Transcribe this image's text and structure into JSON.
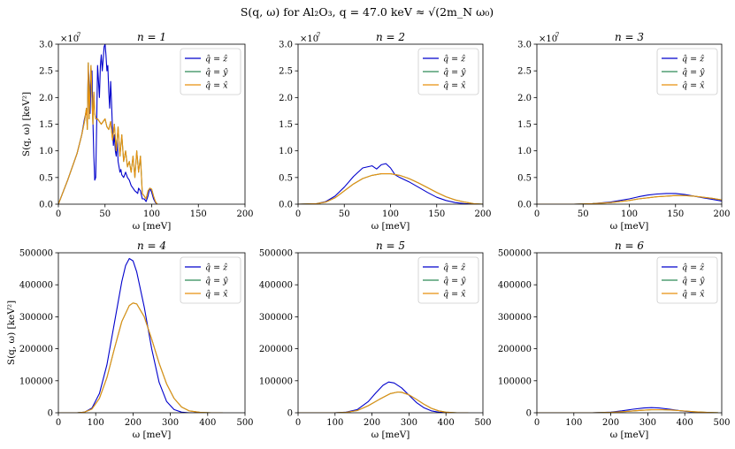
{
  "figure_title": "S(q, ω) for Al₂O₃, q = 47.0 keV ≈ √(2m_N ω₀)",
  "chart_data": [
    {
      "type": "line",
      "title": "n = 1",
      "xlabel": "ω [meV]",
      "ylabel": "S(q, ω) [keV²]",
      "xlim": [
        0,
        200
      ],
      "ylim": [
        0,
        3.0
      ],
      "y_scale_factor": "×10^7",
      "xticks": [
        0,
        50,
        100,
        150,
        200
      ],
      "yticks": [
        "0.0",
        "0.5",
        "1.0",
        "1.5",
        "2.0",
        "2.5",
        "3.0"
      ],
      "legend": "top-right",
      "series": [
        {
          "name": "q̂ = ẑ",
          "color": "#0000cc",
          "x": [
            0,
            10,
            20,
            25,
            28,
            30,
            31,
            32,
            33,
            34,
            35,
            36,
            37,
            38,
            39,
            40,
            41,
            42,
            43,
            44,
            45,
            46,
            47,
            48,
            49,
            50,
            51,
            52,
            53,
            54,
            55,
            56,
            57,
            58,
            59,
            60,
            61,
            62,
            63,
            64,
            65,
            66,
            67,
            68,
            70,
            72,
            74,
            76,
            78,
            80,
            82,
            84,
            85,
            86,
            88,
            90,
            92,
            94,
            96,
            98,
            100,
            102,
            104,
            106
          ],
          "y": [
            0,
            0.45,
            0.95,
            1.3,
            1.6,
            1.75,
            1.5,
            2.6,
            2.2,
            1.7,
            2.4,
            2.5,
            1.6,
            0.9,
            0.45,
            0.5,
            1.5,
            2.6,
            2.3,
            2.0,
            2.6,
            2.8,
            2.5,
            2.7,
            2.95,
            3.0,
            2.8,
            2.5,
            2.6,
            2.1,
            1.8,
            2.3,
            1.9,
            1.4,
            1.1,
            1.3,
            1.0,
            0.9,
            1.2,
            0.8,
            0.7,
            0.6,
            0.65,
            0.55,
            0.5,
            0.6,
            0.5,
            0.45,
            0.35,
            0.3,
            0.25,
            0.22,
            0.2,
            0.3,
            0.25,
            0.1,
            0.1,
            0.05,
            0.15,
            0.3,
            0.22,
            0.1,
            0.03,
            0
          ]
        },
        {
          "name": "q̂ = ŷ",
          "color": "#2e8b57",
          "x": [
            0,
            10,
            20,
            25,
            28,
            30,
            31,
            32,
            33,
            34,
            35,
            36,
            37,
            38,
            39,
            40,
            42,
            44,
            46,
            48,
            50,
            52,
            54,
            56,
            58,
            60,
            62,
            64,
            66,
            68,
            70,
            72,
            74,
            76,
            78,
            80,
            82,
            84,
            86,
            88,
            90,
            92,
            94,
            96,
            98,
            100,
            102,
            104,
            106
          ],
          "y": [
            0,
            0.45,
            0.95,
            1.3,
            1.55,
            1.8,
            1.4,
            2.65,
            1.6,
            2.2,
            2.6,
            2.0,
            1.5,
            2.1,
            1.7,
            1.6,
            1.6,
            1.55,
            1.5,
            1.55,
            1.6,
            1.45,
            1.4,
            1.55,
            1.2,
            1.5,
            1.0,
            1.45,
            0.9,
            1.3,
            0.8,
            1.0,
            0.7,
            0.8,
            0.6,
            0.9,
            0.5,
            1.0,
            0.6,
            0.9,
            0.2,
            0.15,
            0.1,
            0.25,
            0.3,
            0.28,
            0.15,
            0.05,
            0
          ]
        },
        {
          "name": "q̂ = x̂",
          "color": "#e8900f",
          "x": [
            0,
            10,
            20,
            25,
            28,
            30,
            31,
            32,
            33,
            34,
            35,
            36,
            37,
            38,
            39,
            40,
            42,
            44,
            46,
            48,
            50,
            52,
            54,
            56,
            58,
            60,
            62,
            64,
            66,
            68,
            70,
            72,
            74,
            76,
            78,
            80,
            82,
            84,
            86,
            88,
            90,
            92,
            94,
            96,
            98,
            100,
            102,
            104,
            106
          ],
          "y": [
            0,
            0.45,
            0.95,
            1.3,
            1.55,
            1.8,
            1.4,
            2.65,
            1.6,
            2.2,
            2.6,
            2.0,
            1.5,
            2.1,
            1.7,
            1.6,
            1.6,
            1.55,
            1.5,
            1.55,
            1.6,
            1.45,
            1.4,
            1.55,
            1.2,
            1.5,
            1.0,
            1.45,
            0.9,
            1.3,
            0.8,
            1.0,
            0.7,
            0.8,
            0.6,
            0.9,
            0.5,
            1.0,
            0.6,
            0.9,
            0.2,
            0.15,
            0.1,
            0.25,
            0.3,
            0.28,
            0.15,
            0.05,
            0
          ]
        }
      ]
    },
    {
      "type": "line",
      "title": "n = 2",
      "xlabel": "ω [meV]",
      "ylabel": "",
      "xlim": [
        0,
        200
      ],
      "ylim": [
        0,
        3.0
      ],
      "y_scale_factor": "×10^7",
      "xticks": [
        0,
        50,
        100,
        150,
        200
      ],
      "yticks": [
        "0.0",
        "0.5",
        "1.0",
        "1.5",
        "2.0",
        "2.5",
        "3.0"
      ],
      "legend": "top-right",
      "series": [
        {
          "name": "q̂ = ẑ",
          "color": "#0000cc",
          "x": [
            0,
            20,
            30,
            40,
            50,
            60,
            70,
            80,
            85,
            90,
            95,
            100,
            105,
            110,
            120,
            130,
            140,
            150,
            160,
            170,
            180,
            190,
            200
          ],
          "y": [
            0,
            0.01,
            0.05,
            0.15,
            0.32,
            0.52,
            0.68,
            0.72,
            0.66,
            0.74,
            0.76,
            0.68,
            0.55,
            0.5,
            0.42,
            0.32,
            0.22,
            0.13,
            0.07,
            0.03,
            0.01,
            0,
            0
          ]
        },
        {
          "name": "q̂ = ŷ",
          "color": "#2e8b57",
          "x": [
            0,
            20,
            30,
            40,
            50,
            60,
            70,
            80,
            90,
            100,
            110,
            120,
            130,
            140,
            150,
            160,
            170,
            180,
            190,
            200
          ],
          "y": [
            0,
            0.01,
            0.04,
            0.12,
            0.25,
            0.38,
            0.48,
            0.54,
            0.57,
            0.57,
            0.54,
            0.48,
            0.4,
            0.31,
            0.22,
            0.14,
            0.08,
            0.04,
            0.01,
            0
          ]
        },
        {
          "name": "q̂ = x̂",
          "color": "#e8900f",
          "x": [
            0,
            20,
            30,
            40,
            50,
            60,
            70,
            80,
            90,
            100,
            110,
            120,
            130,
            140,
            150,
            160,
            170,
            180,
            190,
            200
          ],
          "y": [
            0,
            0.01,
            0.04,
            0.12,
            0.25,
            0.38,
            0.48,
            0.54,
            0.57,
            0.57,
            0.54,
            0.48,
            0.4,
            0.31,
            0.22,
            0.14,
            0.08,
            0.04,
            0.01,
            0
          ]
        }
      ]
    },
    {
      "type": "line",
      "title": "n = 3",
      "xlabel": "ω [meV]",
      "ylabel": "",
      "xlim": [
        0,
        200
      ],
      "ylim": [
        0,
        3.0
      ],
      "y_scale_factor": "×10^7",
      "xticks": [
        0,
        50,
        100,
        150,
        200
      ],
      "yticks": [
        "0.0",
        "0.5",
        "1.0",
        "1.5",
        "2.0",
        "2.5",
        "3.0"
      ],
      "legend": "top-right",
      "series": [
        {
          "name": "q̂ = ẑ",
          "color": "#0000cc",
          "x": [
            0,
            40,
            60,
            80,
            100,
            110,
            120,
            130,
            140,
            150,
            160,
            170,
            180,
            190,
            200
          ],
          "y": [
            0,
            0,
            0.01,
            0.04,
            0.1,
            0.14,
            0.17,
            0.19,
            0.2,
            0.2,
            0.18,
            0.15,
            0.12,
            0.09,
            0.06
          ]
        },
        {
          "name": "q̂ = ŷ",
          "color": "#2e8b57",
          "x": [
            0,
            40,
            60,
            80,
            100,
            110,
            120,
            130,
            140,
            150,
            160,
            170,
            180,
            190,
            200
          ],
          "y": [
            0,
            0,
            0.01,
            0.03,
            0.07,
            0.1,
            0.12,
            0.14,
            0.15,
            0.16,
            0.16,
            0.15,
            0.13,
            0.11,
            0.08
          ]
        },
        {
          "name": "q̂ = x̂",
          "color": "#e8900f",
          "x": [
            0,
            40,
            60,
            80,
            100,
            110,
            120,
            130,
            140,
            150,
            160,
            170,
            180,
            190,
            200
          ],
          "y": [
            0,
            0,
            0.01,
            0.03,
            0.07,
            0.1,
            0.12,
            0.14,
            0.15,
            0.16,
            0.16,
            0.15,
            0.13,
            0.11,
            0.08
          ]
        }
      ]
    },
    {
      "type": "line",
      "title": "n = 4",
      "xlabel": "ω [meV]",
      "ylabel": "S(q, ω) [keV²]",
      "xlim": [
        0,
        500
      ],
      "ylim": [
        0,
        500000
      ],
      "xticks": [
        0,
        100,
        200,
        300,
        400,
        500
      ],
      "yticks": [
        "0",
        "100000",
        "200000",
        "300000",
        "400000",
        "500000"
      ],
      "legend": "top-right",
      "series": [
        {
          "name": "q̂ = ẑ",
          "color": "#0000cc",
          "x": [
            0,
            50,
            70,
            90,
            110,
            130,
            150,
            170,
            180,
            190,
            200,
            210,
            230,
            250,
            270,
            290,
            310,
            330,
            350,
            380,
            400
          ],
          "y": [
            0,
            0,
            2000,
            15000,
            60000,
            150000,
            280000,
            410000,
            460000,
            482000,
            475000,
            440000,
            330000,
            200000,
            95000,
            35000,
            10000,
            2000,
            0,
            0,
            0
          ]
        },
        {
          "name": "q̂ = ŷ",
          "color": "#2e8b57",
          "x": [
            0,
            50,
            70,
            90,
            110,
            130,
            150,
            170,
            190,
            200,
            210,
            230,
            250,
            270,
            290,
            310,
            330,
            350,
            380,
            410,
            440
          ],
          "y": [
            0,
            0,
            2000,
            12000,
            45000,
            110000,
            200000,
            285000,
            335000,
            343000,
            340000,
            300000,
            230000,
            155000,
            90000,
            45000,
            18000,
            6000,
            1000,
            0,
            0
          ]
        },
        {
          "name": "q̂ = x̂",
          "color": "#e8900f",
          "x": [
            0,
            50,
            70,
            90,
            110,
            130,
            150,
            170,
            190,
            200,
            210,
            230,
            250,
            270,
            290,
            310,
            330,
            350,
            380,
            410,
            440
          ],
          "y": [
            0,
            0,
            2000,
            12000,
            45000,
            110000,
            200000,
            285000,
            335000,
            343000,
            340000,
            300000,
            230000,
            155000,
            90000,
            45000,
            18000,
            6000,
            1000,
            0,
            0
          ]
        }
      ]
    },
    {
      "type": "line",
      "title": "n = 5",
      "xlabel": "ω [meV]",
      "ylabel": "",
      "xlim": [
        0,
        500
      ],
      "ylim": [
        0,
        500000
      ],
      "xticks": [
        0,
        100,
        200,
        300,
        400,
        500
      ],
      "yticks": [
        "0",
        "100000",
        "200000",
        "300000",
        "400000",
        "500000"
      ],
      "legend": "top-right",
      "series": [
        {
          "name": "q̂ = ẑ",
          "color": "#0000cc",
          "x": [
            0,
            100,
            130,
            160,
            190,
            210,
            230,
            245,
            260,
            280,
            300,
            320,
            340,
            360,
            380,
            410,
            440
          ],
          "y": [
            0,
            0,
            2000,
            10000,
            35000,
            62000,
            86000,
            96000,
            93000,
            78000,
            55000,
            32000,
            16000,
            6000,
            2000,
            0,
            0
          ]
        },
        {
          "name": "q̂ = ŷ",
          "color": "#2e8b57",
          "x": [
            0,
            100,
            130,
            160,
            190,
            220,
            250,
            270,
            280,
            300,
            320,
            340,
            360,
            380,
            400,
            430,
            460
          ],
          "y": [
            0,
            0,
            1500,
            7000,
            22000,
            42000,
            60000,
            65000,
            64000,
            56000,
            42000,
            27000,
            14000,
            6000,
            2000,
            0,
            0
          ]
        },
        {
          "name": "q̂ = x̂",
          "color": "#e8900f",
          "x": [
            0,
            100,
            130,
            160,
            190,
            220,
            250,
            270,
            280,
            300,
            320,
            340,
            360,
            380,
            400,
            430,
            460
          ],
          "y": [
            0,
            0,
            1500,
            7000,
            22000,
            42000,
            60000,
            65000,
            64000,
            56000,
            42000,
            27000,
            14000,
            6000,
            2000,
            0,
            0
          ]
        }
      ]
    },
    {
      "type": "line",
      "title": "n = 6",
      "xlabel": "ω [meV]",
      "ylabel": "",
      "xlim": [
        0,
        500
      ],
      "ylim": [
        0,
        500000
      ],
      "xticks": [
        0,
        100,
        200,
        300,
        400,
        500
      ],
      "yticks": [
        "0",
        "100000",
        "200000",
        "300000",
        "400000",
        "500000"
      ],
      "legend": "top-right",
      "series": [
        {
          "name": "q̂ = ẑ",
          "color": "#0000cc",
          "x": [
            0,
            150,
            200,
            230,
            260,
            290,
            310,
            330,
            360,
            390,
            420,
            450,
            480
          ],
          "y": [
            0,
            0,
            2000,
            6000,
            11000,
            15000,
            16000,
            15000,
            11000,
            6000,
            2500,
            800,
            0
          ]
        },
        {
          "name": "q̂ = ŷ",
          "color": "#2e8b57",
          "x": [
            0,
            150,
            200,
            240,
            280,
            310,
            340,
            370,
            400,
            430,
            460,
            490
          ],
          "y": [
            0,
            0,
            1500,
            4000,
            7500,
            9500,
            9500,
            8000,
            5500,
            3000,
            1200,
            300
          ]
        },
        {
          "name": "q̂ = x̂",
          "color": "#e8900f",
          "x": [
            0,
            150,
            200,
            240,
            280,
            310,
            340,
            370,
            400,
            430,
            460,
            490
          ],
          "y": [
            0,
            0,
            1500,
            4000,
            7500,
            9500,
            9500,
            8000,
            5500,
            3000,
            1200,
            300
          ]
        }
      ]
    }
  ]
}
